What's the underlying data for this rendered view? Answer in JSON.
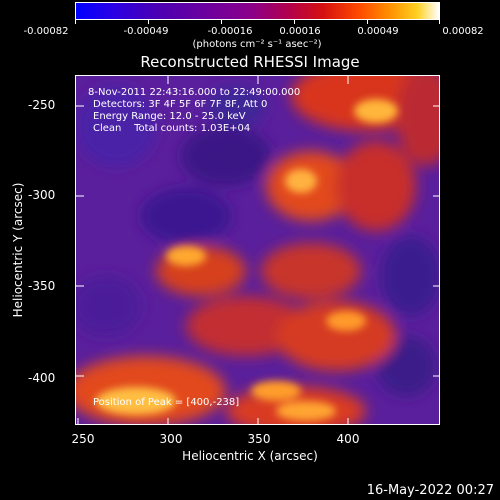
{
  "colorbar": {
    "labels": [
      "-0.00082",
      "-0.00049",
      "-0.00016",
      "0.00016",
      "0.00049",
      "0.00082"
    ],
    "units": "(photons cm⁻² s⁻¹ asec⁻²)"
  },
  "title": "Reconstructed RHESSI Image",
  "info": {
    "time": "8-Nov-2011 22:43:16.000 to 22:49:00.000",
    "detectors": "Detectors: 3F 4F 5F 6F 7F 8F, Att 0",
    "energy": "Energy Range: 12.0 - 25.0 keV",
    "clean": "Clean    Total counts: 1.03E+04",
    "peak": "Position of Peak = [400,-238]"
  },
  "axes": {
    "xlabel": "Heliocentric X (arcsec)",
    "ylabel": "Heliocentric Y (arcsec)",
    "xticks": [
      "250",
      "300",
      "350",
      "400"
    ],
    "yticks": [
      "-250",
      "-300",
      "-350",
      "-400"
    ]
  },
  "timestamp": "16-May-2022 00:27"
}
